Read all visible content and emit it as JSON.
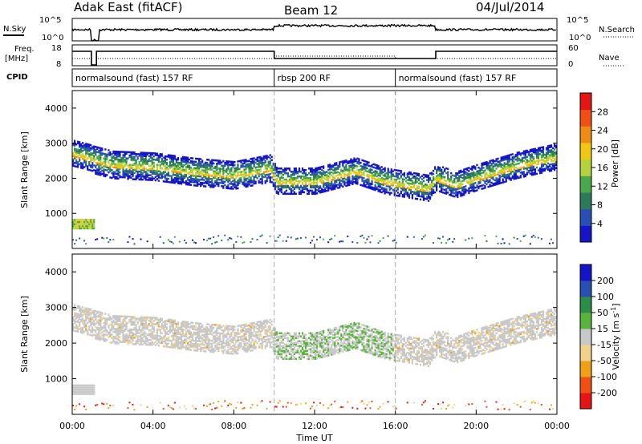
{
  "header": {
    "station": "Adak East (fitACF)",
    "beam": "Beam 12",
    "date": "04/Jul/2014"
  },
  "top_panels": {
    "nsky_label": "N.Sky",
    "nsky_ticks": [
      "10^5",
      "10^0"
    ],
    "nsearch_label": "N.Search",
    "freq_label": "Freq.",
    "freq_unit": "[MHz]",
    "freq_ticks": [
      "18",
      "8"
    ],
    "nave_label": "Nave",
    "nave_ticks": [
      "60",
      "0"
    ],
    "cpid_label": "CPID",
    "cpid_segments": [
      {
        "label": "normalsound (fast) 157 RF",
        "start": 0,
        "end": 10
      },
      {
        "label": "rbsp 200 RF",
        "start": 10,
        "end": 16
      },
      {
        "label": "normalsound (fast) 157 RF",
        "start": 16,
        "end": 24
      }
    ]
  },
  "colors": {
    "power": [
      "#1414c8",
      "#2850b4",
      "#2d7a5a",
      "#4aa84a",
      "#b4d23c",
      "#f0c814",
      "#f08c14",
      "#f05014",
      "#e61414"
    ],
    "velocity": [
      "#e61414",
      "#f05014",
      "#f0a014",
      "#f0d28c",
      "#c8c8c8",
      "#5ab43c",
      "#2d8c46",
      "#2850b4",
      "#1414c8"
    ],
    "echo_gray": "#c8c8c8"
  },
  "chart_data": [
    {
      "type": "heatmap",
      "name": "power",
      "ylabel": "Slant Range [km]",
      "xlabel": "",
      "xlim": [
        0,
        24
      ],
      "ylim": [
        0,
        4500
      ],
      "yticks": [
        1000,
        2000,
        3000,
        4000
      ],
      "colorbar_label": "Power [dB]",
      "colorbar_ticks": [
        "4",
        "8",
        "12",
        "16",
        "20",
        "24",
        "28"
      ],
      "band_center_km": [
        [
          0,
          2700
        ],
        [
          2,
          2400
        ],
        [
          4,
          2350
        ],
        [
          6,
          2200
        ],
        [
          8,
          2100
        ],
        [
          9.8,
          2300
        ],
        [
          10.1,
          1900
        ],
        [
          12,
          1900
        ],
        [
          14,
          2200
        ],
        [
          15.5,
          1900
        ],
        [
          17.6,
          1700
        ],
        [
          18,
          2000
        ],
        [
          19,
          1800
        ],
        [
          20,
          2000
        ],
        [
          22,
          2350
        ],
        [
          24,
          2600
        ]
      ]
    },
    {
      "type": "heatmap",
      "name": "velocity",
      "ylabel": "Slant Range [km]",
      "xlabel": "Time UT",
      "xlim": [
        0,
        24
      ],
      "ylim": [
        0,
        4500
      ],
      "yticks": [
        1000,
        2000,
        3000,
        4000
      ],
      "xticks": [
        "00:00",
        "04:00",
        "08:00",
        "12:00",
        "16:00",
        "20:00",
        "00:00"
      ],
      "colorbar_label": "Velocity [m s-1]",
      "colorbar_ticks": [
        "-200",
        "-100",
        "-50",
        "-15",
        "15",
        "50",
        "100",
        "200"
      ]
    }
  ]
}
